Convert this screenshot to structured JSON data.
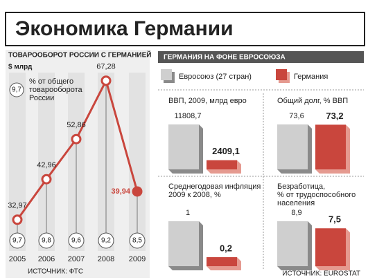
{
  "title": "Экономика Германии",
  "chart_data": [
    {
      "type": "line",
      "title": "ТОВАРООБОРОТ РОССИИ С ГЕРМАНИЕЙ",
      "subtitle": "$ млрд",
      "categories": [
        "2005",
        "2006",
        "2007",
        "2008",
        "2009"
      ],
      "values": [
        32.97,
        42.96,
        52.86,
        67.28,
        39.94
      ],
      "value_labels": [
        "32,97",
        "42,96",
        "52,86",
        "67,28",
        "39,94"
      ],
      "color": "#c9463d",
      "shares": [
        9.7,
        9.8,
        9.6,
        9.2,
        8.5
      ],
      "share_labels": [
        "9,7",
        "9,8",
        "9,6",
        "9,2",
        "8,5"
      ],
      "share_legend": [
        "% от общего",
        "товарооборота",
        "России"
      ],
      "source": "ИСТОЧНИК: ФТС"
    },
    {
      "type": "bar",
      "title": "ГЕРМАНИЯ НА ФОНЕ ЕВРОСОЮЗА",
      "series": [
        {
          "name": "Евросоюз (27 стран)",
          "color": "#cfcfcf"
        },
        {
          "name": "Германия",
          "color": "#c9463d"
        }
      ],
      "panels": [
        {
          "title": [
            "ВВП, 2009, млрд евро"
          ],
          "values": [
            11808.7,
            2409.1
          ],
          "value_labels": [
            "11808,7",
            "2409,1"
          ]
        },
        {
          "title": [
            "Общий долг, % ВВП"
          ],
          "values": [
            73.6,
            73.2
          ],
          "value_labels": [
            "73,6",
            "73,2"
          ]
        },
        {
          "title": [
            "Среднегодовая инфляция",
            "2009 к 2008, %"
          ],
          "values": [
            1,
            0.2
          ],
          "value_labels": [
            "1",
            "0,2"
          ]
        },
        {
          "title": [
            "Безработица,",
            "% от трудоспособного",
            "населения"
          ],
          "values": [
            8.9,
            7.5
          ],
          "value_labels": [
            "8,9",
            "7,5"
          ]
        }
      ],
      "source": "ИСТОЧНИК: EUROSTAT"
    }
  ]
}
